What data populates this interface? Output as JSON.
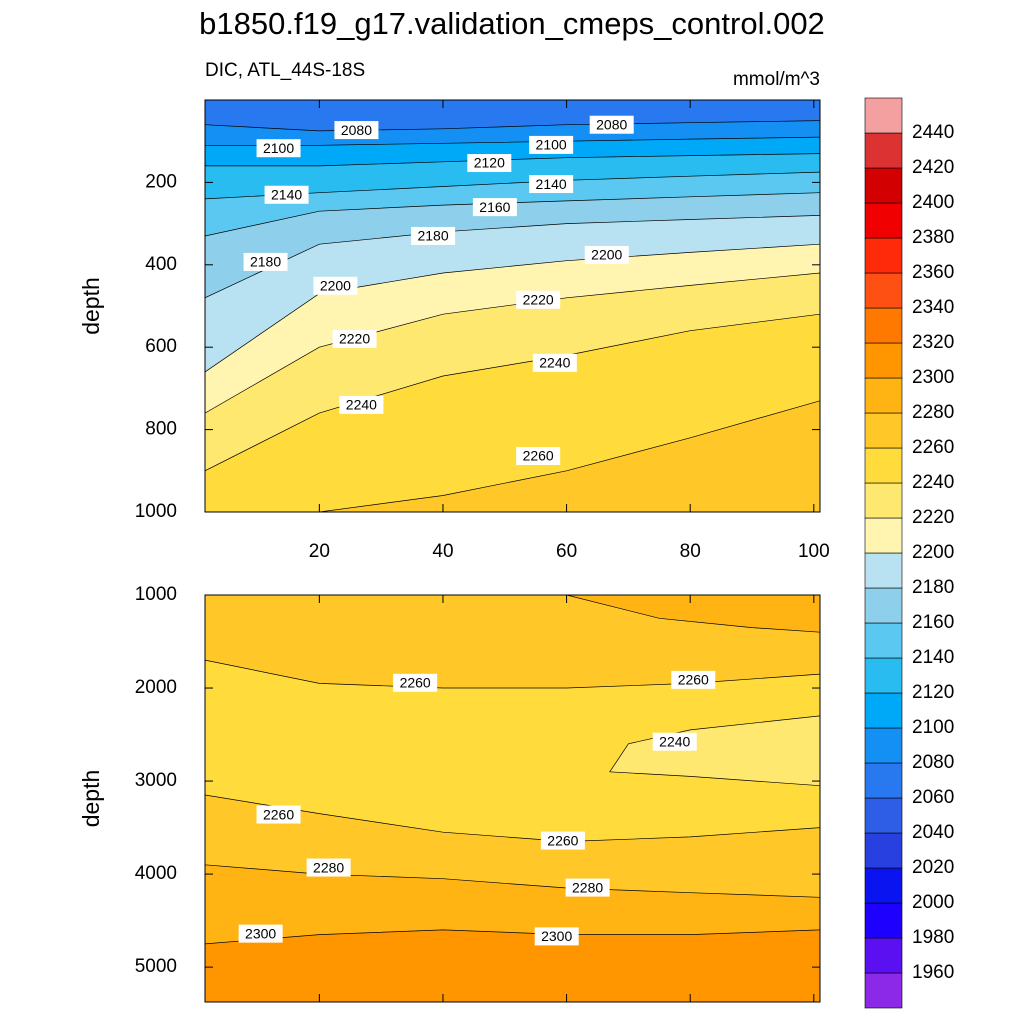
{
  "header": {
    "title": "b1850.f19_g17.validation_cmeps_control.002",
    "left_label": "DIC, ATL_44S-18S",
    "right_label": "mmol/m^3"
  },
  "chart_data": [
    {
      "type": "contour",
      "ylabel": "depth",
      "xlim": [
        1.5,
        101
      ],
      "ylim": [
        0,
        1000
      ],
      "y_reversed": true,
      "xticks": [
        20,
        40,
        60,
        80,
        100
      ],
      "show_xtick_labels": true,
      "yticks": [
        200,
        400,
        600,
        800,
        1000
      ],
      "background_color": "#ffc828",
      "contours": [
        {
          "level": 2260,
          "side": "above",
          "color": "#ffdc3c",
          "x": [
            1.5,
            20,
            40,
            60,
            80,
            101
          ],
          "depth": [
            1100,
            1000,
            960,
            900,
            820,
            730
          ]
        },
        {
          "level": 2240,
          "side": "above",
          "color": "#ffe870",
          "x": [
            1.5,
            20,
            40,
            60,
            80,
            101
          ],
          "depth": [
            900,
            760,
            670,
            620,
            560,
            520
          ]
        },
        {
          "level": 2220,
          "side": "above",
          "color": "#fff5b0",
          "x": [
            1.5,
            20,
            40,
            60,
            80,
            101
          ],
          "depth": [
            760,
            600,
            520,
            480,
            450,
            420
          ]
        },
        {
          "level": 2200,
          "side": "above",
          "color": "#b8e2f2",
          "x": [
            1.5,
            20,
            40,
            60,
            80,
            101
          ],
          "depth": [
            660,
            470,
            420,
            390,
            370,
            350
          ]
        },
        {
          "level": 2180,
          "side": "above",
          "color": "#8ed0ec",
          "x": [
            1.5,
            20,
            40,
            60,
            80,
            101
          ],
          "depth": [
            480,
            350,
            320,
            300,
            290,
            280
          ]
        },
        {
          "level": 2160,
          "side": "above",
          "color": "#5ac8f0",
          "x": [
            1.5,
            20,
            40,
            60,
            80,
            101
          ],
          "depth": [
            330,
            270,
            255,
            245,
            235,
            225
          ]
        },
        {
          "level": 2140,
          "side": "above",
          "color": "#28bcf0",
          "x": [
            1.5,
            20,
            40,
            60,
            80,
            101
          ],
          "depth": [
            240,
            225,
            210,
            195,
            185,
            175
          ]
        },
        {
          "level": 2120,
          "side": "above",
          "color": "#00a8f8",
          "x": [
            1.5,
            20,
            40,
            60,
            80,
            101
          ],
          "depth": [
            160,
            160,
            150,
            140,
            135,
            130
          ]
        },
        {
          "level": 2100,
          "side": "above",
          "color": "#1490f5",
          "x": [
            1.5,
            20,
            40,
            60,
            80,
            101
          ],
          "depth": [
            110,
            110,
            105,
            100,
            95,
            90
          ]
        },
        {
          "level": 2080,
          "side": "above",
          "color": "#2878f0",
          "x": [
            1.5,
            20,
            40,
            60,
            80,
            101
          ],
          "depth": [
            60,
            75,
            70,
            60,
            55,
            50
          ]
        }
      ],
      "labels": [
        {
          "value": 2080,
          "x": 26,
          "depth": 73
        },
        {
          "value": 2080,
          "x": 67.3,
          "depth": 60
        },
        {
          "value": 2100,
          "x": 13.4,
          "depth": 117
        },
        {
          "value": 2100,
          "x": 57.5,
          "depth": 109
        },
        {
          "value": 2120,
          "x": 47.5,
          "depth": 153
        },
        {
          "value": 2140,
          "x": 14.7,
          "depth": 230
        },
        {
          "value": 2140,
          "x": 57.5,
          "depth": 204
        },
        {
          "value": 2160,
          "x": 48.4,
          "depth": 260
        },
        {
          "value": 2180,
          "x": 38.4,
          "depth": 330
        },
        {
          "value": 2180,
          "x": 11.3,
          "depth": 393
        },
        {
          "value": 2200,
          "x": 22.6,
          "depth": 451
        },
        {
          "value": 2200,
          "x": 66.5,
          "depth": 376
        },
        {
          "value": 2220,
          "x": 55.4,
          "depth": 485
        },
        {
          "value": 2220,
          "x": 25.7,
          "depth": 580
        },
        {
          "value": 2240,
          "x": 58.1,
          "depth": 638
        },
        {
          "value": 2240,
          "x": 26.8,
          "depth": 740
        },
        {
          "value": 2260,
          "x": 55.4,
          "depth": 864
        }
      ]
    },
    {
      "type": "contour",
      "ylabel": "depth",
      "xlim": [
        1.5,
        101
      ],
      "ylim": [
        1000,
        5375
      ],
      "y_reversed": true,
      "xticks": [
        20,
        40,
        60,
        80,
        100
      ],
      "show_xtick_labels": false,
      "yticks": [
        1000,
        2000,
        3000,
        4000,
        5000
      ],
      "background_color": "#ffc828",
      "contours": [
        {
          "level": 2280,
          "side": "above",
          "color": "#ffb414",
          "x": [
            60,
            75,
            90,
            101
          ],
          "depth": [
            1000,
            1250,
            1350,
            1400
          ]
        },
        {
          "level": 2260,
          "side": "closed",
          "color": "#ffdc3c",
          "x": [
            1.5,
            20,
            40,
            60,
            80,
            101,
            101,
            80,
            60,
            40,
            20,
            1.5
          ],
          "depth": [
            1700,
            1950,
            2000,
            2000,
            1950,
            1850,
            3500,
            3600,
            3650,
            3550,
            3350,
            3150
          ]
        },
        {
          "level": 2240,
          "side": "closed",
          "color": "#ffe870",
          "x": [
            101,
            80,
            70,
            67,
            80,
            101
          ],
          "depth": [
            2300,
            2450,
            2600,
            2900,
            2950,
            3050
          ]
        },
        {
          "level": 2280,
          "side": "below",
          "color": "#ffb414",
          "x": [
            1.5,
            20,
            40,
            60,
            80,
            101
          ],
          "depth": [
            3900,
            4000,
            4050,
            4150,
            4200,
            4250
          ]
        },
        {
          "level": 2300,
          "side": "below",
          "color": "#ff9600",
          "x": [
            1.5,
            20,
            40,
            60,
            80,
            101
          ],
          "depth": [
            4750,
            4650,
            4600,
            4650,
            4650,
            4600
          ]
        }
      ],
      "labels": [
        {
          "value": 2260,
          "x": 35.5,
          "depth": 1944
        },
        {
          "value": 2260,
          "x": 80.5,
          "depth": 1912
        },
        {
          "value": 2240,
          "x": 77.5,
          "depth": 2577
        },
        {
          "value": 2260,
          "x": 13.4,
          "depth": 3360
        },
        {
          "value": 2260,
          "x": 59.4,
          "depth": 3640
        },
        {
          "value": 2280,
          "x": 21.5,
          "depth": 3930
        },
        {
          "value": 2280,
          "x": 63.4,
          "depth": 4145
        },
        {
          "value": 2300,
          "x": 10.5,
          "depth": 4640
        },
        {
          "value": 2300,
          "x": 58.4,
          "depth": 4670
        }
      ]
    }
  ],
  "colorbar": {
    "levels": [
      1960,
      1980,
      2000,
      2020,
      2040,
      2060,
      2080,
      2100,
      2120,
      2140,
      2160,
      2180,
      2200,
      2220,
      2240,
      2260,
      2280,
      2300,
      2320,
      2340,
      2360,
      2380,
      2400,
      2420,
      2440
    ],
    "colors": [
      "#8c28e8",
      "#5a10f0",
      "#1e00ff",
      "#0a14f0",
      "#2840e0",
      "#2e5ee6",
      "#2878f0",
      "#1490f5",
      "#00a8f8",
      "#28bcf0",
      "#5ac8f0",
      "#8ed0ec",
      "#b8e2f2",
      "#fff5b0",
      "#ffe870",
      "#ffdc3c",
      "#ffc828",
      "#ffb414",
      "#ff9600",
      "#ff7800",
      "#ff5014",
      "#ff2a0a",
      "#f00000",
      "#d20000",
      "#dc3232",
      "#f5a0a0"
    ]
  }
}
